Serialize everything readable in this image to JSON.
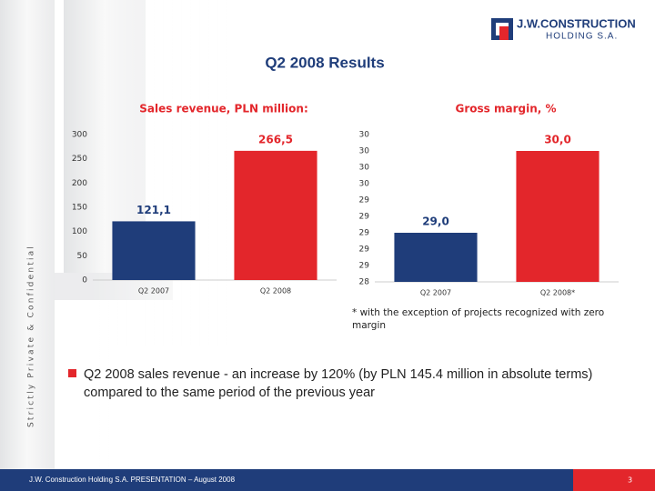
{
  "logo": {
    "line1": "J.W.CONSTRUCTION",
    "line2": "HOLDING S.A."
  },
  "title": "Q2 2008 Results",
  "side_text": "Strictly Private & Confidential",
  "footnote": "* with the exception of projects recognized with zero margin",
  "bullet": "Q2 2008 sales revenue - an increase by 120% (by PLN 145.4 million in absolute terms) compared to the same period of the previous year",
  "footer": "J.W. Construction Holding S.A.   PRESENTATION – August 2008",
  "page_number": "3",
  "chart_data": [
    {
      "type": "bar",
      "title": "Sales revenue, PLN million:",
      "categories": [
        "Q2 2007",
        "Q2 2008"
      ],
      "values": [
        121.1,
        266.5
      ],
      "value_labels": [
        "121,1",
        "266,5"
      ],
      "colors": [
        "#1f3d7a",
        "#e3262b"
      ],
      "ylim": [
        0,
        300
      ],
      "yticks": [
        0,
        50,
        100,
        150,
        200,
        250,
        300
      ]
    },
    {
      "type": "bar",
      "title": "Gross margin, %",
      "categories": [
        "Q2 2007",
        "Q2 2008*"
      ],
      "values": [
        29.0,
        30.0
      ],
      "value_labels": [
        "29,0",
        "30,0"
      ],
      "colors": [
        "#1f3d7a",
        "#e3262b"
      ],
      "ylim": [
        28.4,
        30.2
      ],
      "yticks": [
        {
          "value": 28.4,
          "label": "28"
        },
        {
          "value": 28.6,
          "label": "29"
        },
        {
          "value": 28.8,
          "label": "29"
        },
        {
          "value": 29.0,
          "label": "29"
        },
        {
          "value": 29.2,
          "label": "29"
        },
        {
          "value": 29.4,
          "label": "29"
        },
        {
          "value": 29.6,
          "label": "30"
        },
        {
          "value": 29.8,
          "label": "30"
        },
        {
          "value": 30.0,
          "label": "30"
        },
        {
          "value": 30.2,
          "label": "30"
        }
      ]
    }
  ]
}
